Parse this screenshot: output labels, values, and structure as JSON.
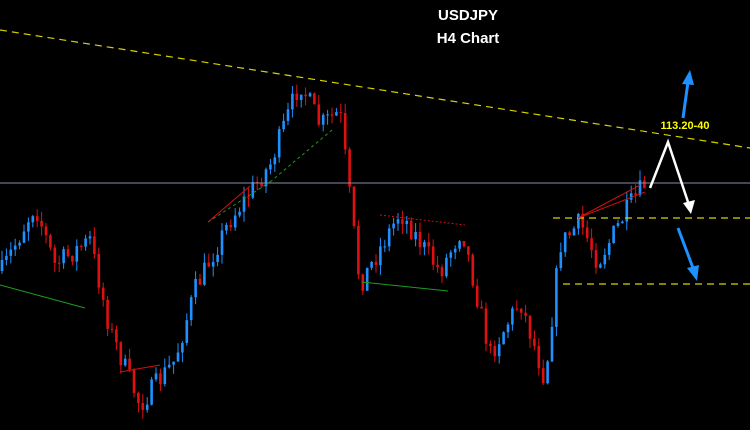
{
  "header": {
    "title": "USDJPY",
    "subtitle": "H4 Chart"
  },
  "annotation": {
    "label": "113.20-40"
  }
}
